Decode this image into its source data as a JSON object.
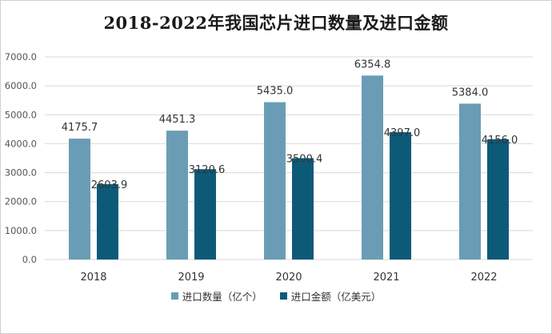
{
  "chart_data": {
    "type": "bar",
    "title": "2018-2022年我国芯片进口数量及进口金额",
    "categories": [
      "2018",
      "2019",
      "2020",
      "2021",
      "2022"
    ],
    "series": [
      {
        "name": "进口数量（亿个）",
        "color": "#6a9db5",
        "values": [
          4175.7,
          4451.3,
          5435.0,
          6354.8,
          5384.0
        ],
        "labels": [
          "4175.7",
          "4451.3",
          "5435.0",
          "6354.8",
          "5384.0"
        ]
      },
      {
        "name": "进口金额（亿美元）",
        "color": "#0d5a78",
        "values": [
          2603.9,
          3120.6,
          3500.4,
          4397.0,
          4156.0
        ],
        "labels": [
          "2603.9",
          "3120.6",
          "3500.4",
          "4397.0",
          "4156.0"
        ]
      }
    ],
    "ylim": [
      0,
      7000
    ],
    "yticks": [
      0,
      1000,
      2000,
      3000,
      4000,
      5000,
      6000,
      7000
    ],
    "ytick_labels": [
      "0.0",
      "1000.0",
      "2000.0",
      "3000.0",
      "4000.0",
      "5000.0",
      "6000.0",
      "7000.0"
    ],
    "grid": true,
    "legend_position": "bottom",
    "xlabel": "",
    "ylabel": ""
  }
}
